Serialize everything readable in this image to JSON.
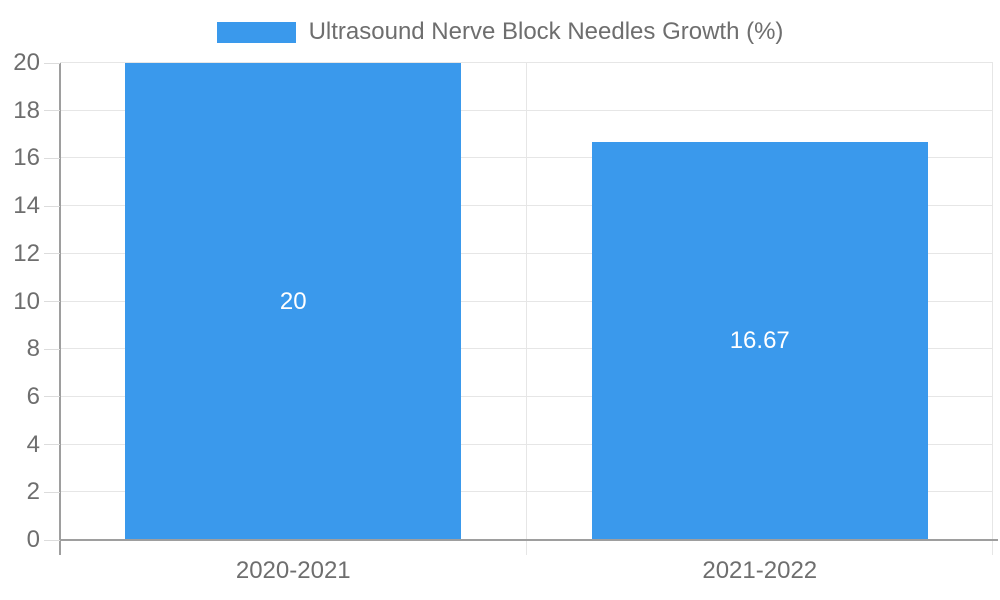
{
  "legend": {
    "label": "Ultrasound Nerve Block Needles Growth (%)"
  },
  "colors": {
    "bar": "#3a99ec",
    "grid": "#e6e6e6",
    "tick": "#dcdcdc",
    "axis": "#9e9e9e",
    "text": "#6e6e6e",
    "data_label": "#ffffff",
    "background": "#ffffff"
  },
  "chart_data": {
    "type": "bar",
    "categories": [
      "2020-2021",
      "2021-2022"
    ],
    "values": [
      20,
      16.67
    ],
    "value_labels": [
      "20",
      "16.67"
    ],
    "series": [
      {
        "name": "Ultrasound Nerve Block Needles Growth (%)",
        "values": [
          20,
          16.67
        ]
      }
    ],
    "title": "Ultrasound Nerve Block Needles Growth (%)",
    "xlabel": "",
    "ylabel": "",
    "ylim": [
      0,
      20
    ],
    "yticks": [
      0,
      2,
      4,
      6,
      8,
      10,
      12,
      14,
      16,
      18,
      20
    ],
    "grid": true,
    "legend_position": "top",
    "bar_color": "#3a99ec",
    "data_labels_inside": true
  }
}
